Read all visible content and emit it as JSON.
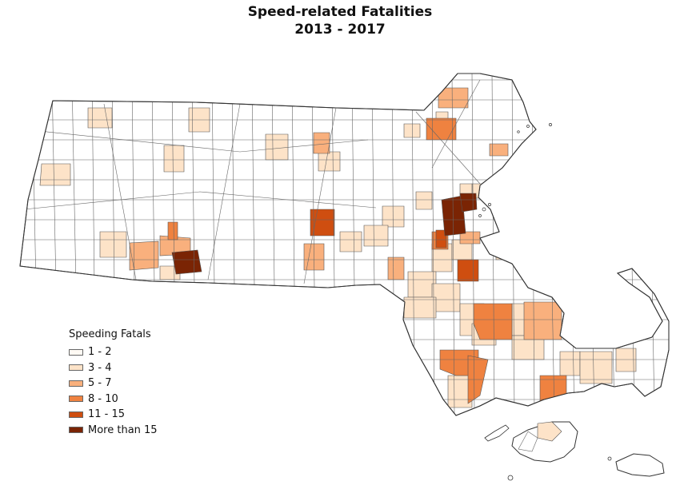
{
  "title": {
    "line1": "Speed-related Fatalities",
    "line2": "2013 - 2017"
  },
  "legend": {
    "title": "Speeding Fatals",
    "items": [
      {
        "label": "1 - 2",
        "color": "#fffaf4"
      },
      {
        "label": "3 - 4",
        "color": "#fde3c8"
      },
      {
        "label": "5 - 7",
        "color": "#f9b07d"
      },
      {
        "label": "8 - 10",
        "color": "#ef8240"
      },
      {
        "label": "11 - 15",
        "color": "#cf4e10"
      },
      {
        "label": "More than 15",
        "color": "#7a2404"
      }
    ]
  },
  "map": {
    "region": "Massachusetts",
    "feature": "towns (choropleth by speeding fatalities)",
    "border_color": "#555555"
  }
}
